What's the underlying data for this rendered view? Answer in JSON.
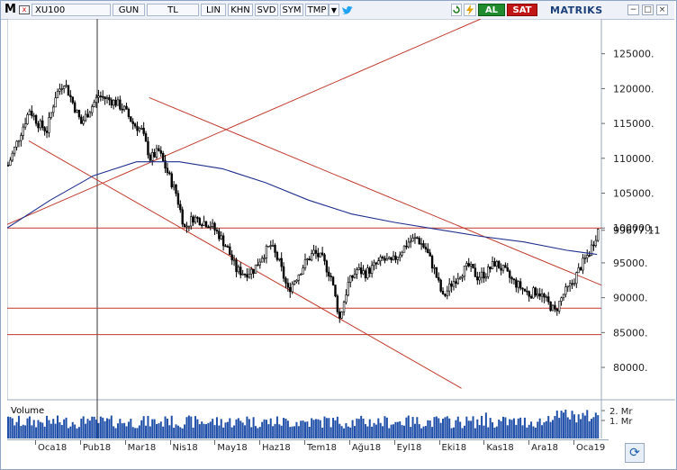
{
  "toolbar": {
    "m_label": "M",
    "symbol": "XU100",
    "period": "GUN",
    "currency": "TL",
    "scale": "LIN",
    "khn": "KHN",
    "svd": "SVD",
    "sym": "SYM",
    "tmp": "TMP",
    "buy": "AL",
    "sell": "SAT",
    "brand": "MATRIKS",
    "close_x": "x"
  },
  "chart_data": {
    "type": "candlestick",
    "symbol": "XU100",
    "ylim": [
      76000,
      130000
    ],
    "y_ticks": [
      80000,
      85000,
      90000,
      95000,
      100000,
      105000,
      110000,
      115000,
      120000,
      125000
    ],
    "y_tick_labels": [
      "80000.",
      "85000.",
      "90000.",
      "95000.",
      "100000.",
      "105000.",
      "110000.",
      "115000.",
      "120000.",
      "125000."
    ],
    "last_price": 99677.11,
    "last_price_label": "99677.11",
    "x_labels": [
      "Oca18",
      "Pub18",
      "Mar18",
      "Nis18",
      "May18",
      "Haz18",
      "Tem18",
      "Ağu18",
      "Eyl18",
      "Eki18",
      "Kas18",
      "Ara18",
      "Oca19"
    ],
    "price_path": [
      [
        0,
        109000
      ],
      [
        5,
        113000
      ],
      [
        10,
        117000
      ],
      [
        14,
        115000
      ],
      [
        18,
        114000
      ],
      [
        22,
        119000
      ],
      [
        26,
        121000
      ],
      [
        30,
        118000
      ],
      [
        34,
        115000
      ],
      [
        38,
        117000
      ],
      [
        42,
        119000
      ],
      [
        46,
        118500
      ],
      [
        50,
        118000
      ],
      [
        54,
        117000
      ],
      [
        58,
        115000
      ],
      [
        62,
        114000
      ],
      [
        66,
        110000
      ],
      [
        70,
        111000
      ],
      [
        74,
        108000
      ],
      [
        78,
        105000
      ],
      [
        82,
        100000
      ],
      [
        86,
        101500
      ],
      [
        90,
        101000
      ],
      [
        94,
        100500
      ],
      [
        98,
        99000
      ],
      [
        102,
        97000
      ],
      [
        106,
        94000
      ],
      [
        110,
        93500
      ],
      [
        114,
        94000
      ],
      [
        118,
        96000
      ],
      [
        122,
        97500
      ],
      [
        126,
        95000
      ],
      [
        130,
        91000
      ],
      [
        134,
        93000
      ],
      [
        138,
        95000
      ],
      [
        142,
        96500
      ],
      [
        146,
        95500
      ],
      [
        150,
        93000
      ],
      [
        154,
        87000
      ],
      [
        158,
        92000
      ],
      [
        162,
        94000
      ],
      [
        166,
        93500
      ],
      [
        170,
        94500
      ],
      [
        174,
        95500
      ],
      [
        178,
        95000
      ],
      [
        182,
        96500
      ],
      [
        186,
        98000
      ],
      [
        190,
        98500
      ],
      [
        194,
        97000
      ],
      [
        198,
        94000
      ],
      [
        202,
        90000
      ],
      [
        206,
        92000
      ],
      [
        210,
        93500
      ],
      [
        214,
        94500
      ],
      [
        218,
        93000
      ],
      [
        222,
        93500
      ],
      [
        226,
        95000
      ],
      [
        230,
        94000
      ],
      [
        234,
        92500
      ],
      [
        238,
        91500
      ],
      [
        242,
        90500
      ],
      [
        246,
        91000
      ],
      [
        250,
        89500
      ],
      [
        254,
        88000
      ],
      [
        258,
        90500
      ],
      [
        262,
        92000
      ],
      [
        266,
        94500
      ],
      [
        270,
        96500
      ],
      [
        274,
        99677
      ]
    ],
    "moving_average": [
      [
        0,
        100000
      ],
      [
        20,
        104000
      ],
      [
        40,
        107500
      ],
      [
        60,
        109500
      ],
      [
        80,
        109500
      ],
      [
        100,
        108500
      ],
      [
        120,
        106500
      ],
      [
        140,
        104000
      ],
      [
        160,
        102000
      ],
      [
        180,
        100800
      ],
      [
        200,
        99800
      ],
      [
        220,
        98800
      ],
      [
        240,
        98000
      ],
      [
        260,
        96800
      ],
      [
        274,
        96200
      ]
    ],
    "volume_label": "Volume",
    "volume_ticks": [
      "2. Mr",
      "1. Mr"
    ],
    "horizontal_levels": [
      100000,
      88500,
      84700
    ],
    "trendlines": [
      {
        "from": [
          0,
          100500
        ],
        "to": [
          220,
          130000
        ]
      },
      {
        "from": [
          10,
          112500
        ],
        "to": [
          211,
          77000
        ]
      },
      {
        "from": [
          66,
          118700
        ],
        "to": [
          276,
          91800
        ]
      }
    ]
  }
}
